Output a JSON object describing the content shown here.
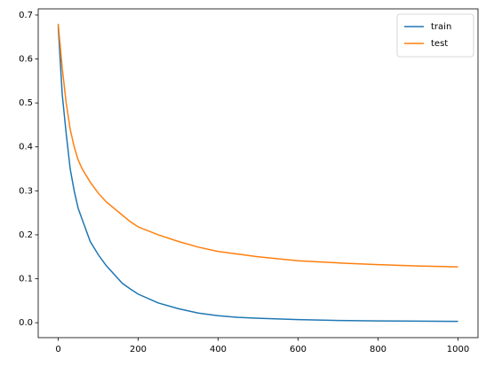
{
  "chart_data": {
    "type": "line",
    "x": [
      0,
      10,
      20,
      30,
      40,
      50,
      60,
      80,
      100,
      120,
      140,
      160,
      180,
      200,
      250,
      300,
      350,
      400,
      450,
      500,
      600,
      700,
      800,
      900,
      1000
    ],
    "series": [
      {
        "name": "train",
        "color": "#1f77b4",
        "values": [
          0.675,
          0.52,
          0.43,
          0.35,
          0.3,
          0.26,
          0.235,
          0.185,
          0.155,
          0.13,
          0.11,
          0.09,
          0.077,
          0.065,
          0.045,
          0.032,
          0.022,
          0.016,
          0.012,
          0.01,
          0.007,
          0.005,
          0.004,
          0.0035,
          0.003
        ]
      },
      {
        "name": "test",
        "color": "#ff7f0e",
        "values": [
          0.68,
          0.58,
          0.5,
          0.44,
          0.4,
          0.37,
          0.35,
          0.32,
          0.295,
          0.275,
          0.26,
          0.245,
          0.23,
          0.218,
          0.2,
          0.185,
          0.172,
          0.162,
          0.156,
          0.15,
          0.141,
          0.136,
          0.132,
          0.129,
          0.127
        ]
      }
    ],
    "xlim": [
      -50,
      1050
    ],
    "xticks": [
      0,
      200,
      400,
      600,
      800,
      1000
    ],
    "ylim": [
      -0.034,
      0.714
    ],
    "yticks": [
      {
        "value": 0,
        "label": "0.0"
      },
      0.1,
      0.2,
      0.3,
      0.4,
      0.5,
      0.6,
      0.7
    ],
    "grid": false,
    "legend": "upper-right"
  }
}
